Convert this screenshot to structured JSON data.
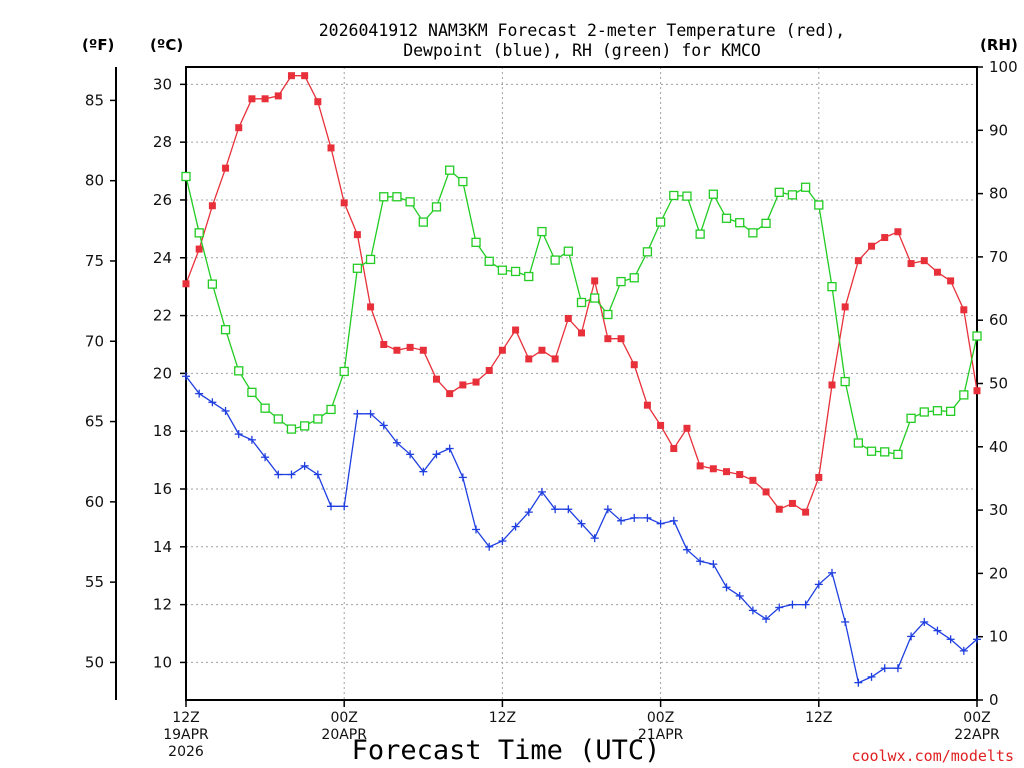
{
  "chart_data": {
    "type": "line",
    "title": [
      "2026041912 NAM3KM Forecast 2-meter Temperature (red),",
      "Dewpoint (blue), RH (green) for KMCO"
    ],
    "xlabel": "Forecast Time (UTC)",
    "credit": "coolwx.com/modelts",
    "units": {
      "fahrenheit": "(ºF)",
      "celsius": "(ºC)",
      "rh": "(RH)"
    },
    "x_range_hours": [
      0,
      60
    ],
    "ylim_celsius": [
      8.7,
      30.6
    ],
    "ylim_rh": [
      0,
      100
    ],
    "x_ticks": [
      {
        "hour": 0,
        "lines": [
          "12Z",
          "19APR",
          "2026"
        ]
      },
      {
        "hour": 12,
        "lines": [
          "00Z",
          "20APR"
        ]
      },
      {
        "hour": 24,
        "lines": [
          "12Z"
        ]
      },
      {
        "hour": 36,
        "lines": [
          "00Z",
          "21APR"
        ]
      },
      {
        "hour": 48,
        "lines": [
          "12Z"
        ]
      },
      {
        "hour": 60,
        "lines": [
          "00Z",
          "22APR"
        ]
      }
    ],
    "celsius_ticks": [
      10,
      12,
      14,
      16,
      18,
      20,
      22,
      24,
      26,
      28,
      30
    ],
    "fahrenheit_ticks": [
      50,
      55,
      60,
      65,
      70,
      75,
      80,
      85
    ],
    "rh_ticks": [
      0,
      10,
      20,
      30,
      40,
      50,
      60,
      70,
      80,
      90,
      100
    ],
    "series": [
      {
        "name": "2-meter Temperature",
        "units": "degC",
        "color": "#e8303a",
        "marker": "filled-square",
        "values": [
          23.1,
          24.3,
          25.8,
          27.1,
          28.5,
          29.5,
          29.5,
          29.6,
          30.3,
          30.3,
          29.4,
          27.8,
          25.9,
          24.8,
          22.3,
          21.0,
          20.8,
          20.9,
          20.8,
          19.8,
          19.3,
          19.6,
          19.7,
          20.1,
          20.8,
          21.5,
          20.5,
          20.8,
          20.5,
          21.9,
          21.4,
          23.2,
          21.2,
          21.2,
          20.3,
          18.9,
          18.2,
          17.4,
          18.1,
          16.8,
          16.7,
          16.6,
          16.5,
          16.3,
          15.9,
          15.3,
          15.5,
          15.2,
          16.4,
          19.6,
          22.3,
          23.9,
          24.4,
          24.7,
          24.9,
          23.8,
          23.9,
          23.5,
          23.2,
          22.2,
          19.4
        ],
        "rh_percent": []
      },
      {
        "name": "Dewpoint",
        "units": "degC",
        "color": "#1f3fe0",
        "marker": "plus",
        "values": [
          19.9,
          19.3,
          19.0,
          18.7,
          17.9,
          17.7,
          17.1,
          16.5,
          16.5,
          16.8,
          16.5,
          15.4,
          15.4,
          18.6,
          18.6,
          18.2,
          17.6,
          17.2,
          16.6,
          17.2,
          17.4,
          16.4,
          14.6,
          14.0,
          14.2,
          14.7,
          15.2,
          15.9,
          15.3,
          15.3,
          14.8,
          14.3,
          15.3,
          14.9,
          15.0,
          15.0,
          14.8,
          14.9,
          13.9,
          13.5,
          13.4,
          12.6,
          12.3,
          11.8,
          11.5,
          11.9,
          12.0,
          12.0,
          12.7,
          13.1,
          11.4,
          9.3,
          9.5,
          9.8,
          9.8,
          10.9,
          11.4,
          11.1,
          10.8,
          10.4,
          10.8
        ],
        "rh_percent": []
      },
      {
        "name": "RH",
        "units": "percent",
        "color": "#22cc22",
        "marker": "open-square",
        "values": [
          82.7,
          73.8,
          65.7,
          58.5,
          52.0,
          48.6,
          46.1,
          44.4,
          42.8,
          43.3,
          44.4,
          45.9,
          51.9,
          68.2,
          69.6,
          79.5,
          79.5,
          78.7,
          75.5,
          77.9,
          83.7,
          81.9,
          72.3,
          69.3,
          67.9,
          67.7,
          66.9,
          74.0,
          69.5,
          70.9,
          62.8,
          63.5,
          60.9,
          66.1,
          66.7,
          70.8,
          75.5,
          79.7,
          79.6,
          73.6,
          79.9,
          76.1,
          75.4,
          73.8,
          75.3,
          80.2,
          79.8,
          81.0,
          78.2,
          65.3,
          50.3,
          40.6,
          39.3,
          39.2,
          38.8,
          44.5,
          45.5,
          45.7,
          45.6,
          48.2,
          57.5
        ],
        "rh_percent": []
      }
    ]
  }
}
